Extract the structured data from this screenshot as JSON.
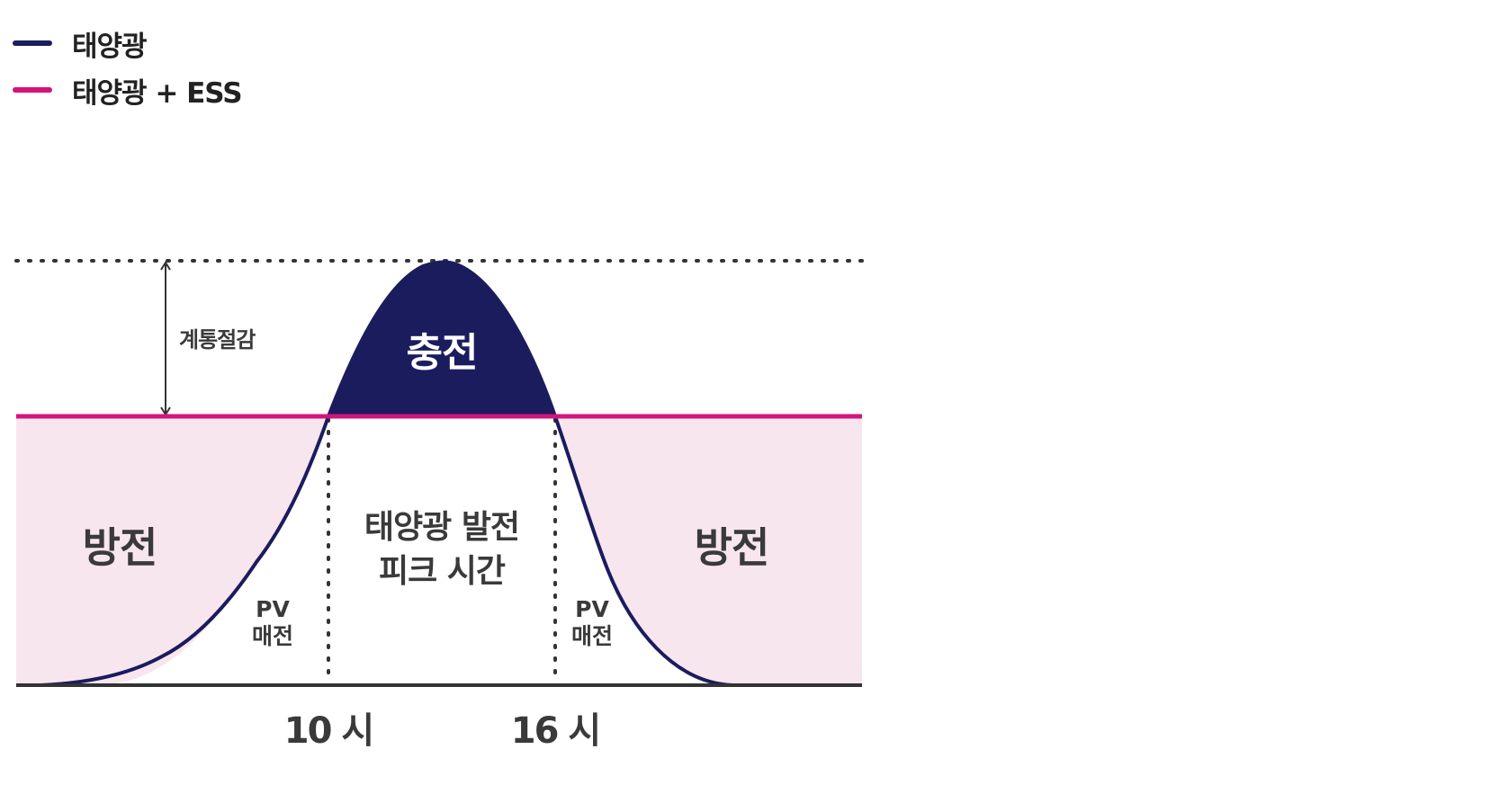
{
  "legend": [
    {
      "label": "태양광",
      "color": "#1b1c5e"
    },
    {
      "label": "태양광 + ESS",
      "color": "#d3147d"
    }
  ],
  "colors": {
    "solar": "#1b1c5e",
    "ess": "#d3147d",
    "discharge_fill": "#f8e6ee",
    "axis": "#333333",
    "text": "#3a3a3a"
  },
  "labels": {
    "grid_reduction": "계통절감",
    "charge": "충전",
    "discharge_left": "방전",
    "discharge_right": "방전",
    "peak_line1": "태양광 발전",
    "peak_line2": "피크 시간",
    "pv_sell_left_line1": "PV",
    "pv_sell_left_line2": "매전",
    "pv_sell_right_line1": "PV",
    "pv_sell_right_line2": "매전",
    "time_10": "10 시",
    "time_16": "16 시"
  }
}
